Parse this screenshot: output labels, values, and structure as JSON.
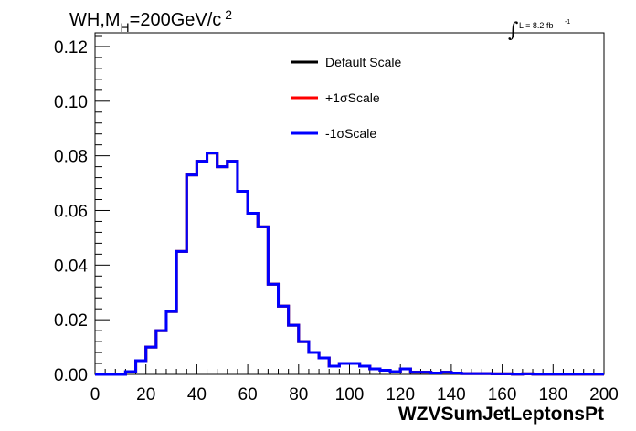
{
  "chart_data": {
    "type": "line",
    "title_main": "WH,M",
    "title_sub": "H",
    "title_rest": "=200GeV/c",
    "title_sup": "2",
    "lumi_text": "L = 8.2 fb",
    "lumi_sup": "-1",
    "xlabel": "WZVSumJetLeptonsPt",
    "xlim": [
      0,
      200
    ],
    "ylim": [
      0,
      0.125
    ],
    "x_ticks": [
      "0",
      "20",
      "40",
      "60",
      "80",
      "100",
      "120",
      "140",
      "160",
      "180",
      "200"
    ],
    "y_ticks": [
      "0.00",
      "0.02",
      "0.04",
      "0.06",
      "0.08",
      "0.10",
      "0.12"
    ],
    "bin_edges": [
      0,
      4,
      8,
      12,
      16,
      20,
      24,
      28,
      32,
      36,
      40,
      44,
      48,
      52,
      56,
      60,
      64,
      68,
      72,
      76,
      80,
      84,
      88,
      92,
      96,
      100,
      104,
      108,
      112,
      116,
      120,
      124,
      128,
      132,
      136,
      140,
      144,
      148,
      152,
      156,
      160,
      164,
      168,
      172,
      176,
      180,
      184,
      188,
      192,
      196,
      200
    ],
    "series": [
      {
        "name": "Default Scale",
        "color": "#000000",
        "values": [
          0,
          0,
          0,
          0.001,
          0.005,
          0.01,
          0.016,
          0.023,
          0.045,
          0.073,
          0.078,
          0.081,
          0.076,
          0.078,
          0.067,
          0.059,
          0.054,
          0.033,
          0.025,
          0.018,
          0.012,
          0.008,
          0.006,
          0.003,
          0.004,
          0.004,
          0.003,
          0.002,
          0.0015,
          0.001,
          0.002,
          0.0008,
          0.0008,
          0.0005,
          0.0008,
          0.0005,
          0.0003,
          0.0003,
          0.0003,
          0.0002,
          0.0002,
          0.0001,
          0.0002,
          0.0001,
          0.0001,
          0.0001,
          0.0001,
          0.0001,
          0.0001,
          0.0001
        ]
      },
      {
        "name": "+1σScale",
        "color": "#ff0000",
        "values": [
          0,
          0,
          0,
          0.001,
          0.005,
          0.01,
          0.016,
          0.023,
          0.045,
          0.073,
          0.078,
          0.081,
          0.076,
          0.078,
          0.067,
          0.059,
          0.054,
          0.033,
          0.025,
          0.018,
          0.012,
          0.008,
          0.006,
          0.003,
          0.004,
          0.004,
          0.003,
          0.002,
          0.0015,
          0.001,
          0.002,
          0.0008,
          0.0008,
          0.0005,
          0.0008,
          0.0005,
          0.0003,
          0.0003,
          0.0003,
          0.0002,
          0.0002,
          0.0001,
          0.0002,
          0.0001,
          0.0001,
          0.0001,
          0.0001,
          0.0001,
          0.0001,
          0.0001
        ]
      },
      {
        "name": "-1σScale",
        "color": "#0000ff",
        "values": [
          0,
          0,
          0,
          0.001,
          0.005,
          0.01,
          0.016,
          0.023,
          0.045,
          0.073,
          0.078,
          0.081,
          0.076,
          0.078,
          0.067,
          0.059,
          0.054,
          0.033,
          0.025,
          0.018,
          0.012,
          0.008,
          0.006,
          0.003,
          0.004,
          0.004,
          0.003,
          0.002,
          0.0015,
          0.001,
          0.002,
          0.0008,
          0.0008,
          0.0005,
          0.0008,
          0.0005,
          0.0003,
          0.0003,
          0.0003,
          0.0002,
          0.0002,
          0.0001,
          0.0002,
          0.0001,
          0.0001,
          0.0001,
          0.0001,
          0.0001,
          0.0001,
          0.0001
        ]
      }
    ],
    "legend_position": "top-right",
    "grid": false
  }
}
